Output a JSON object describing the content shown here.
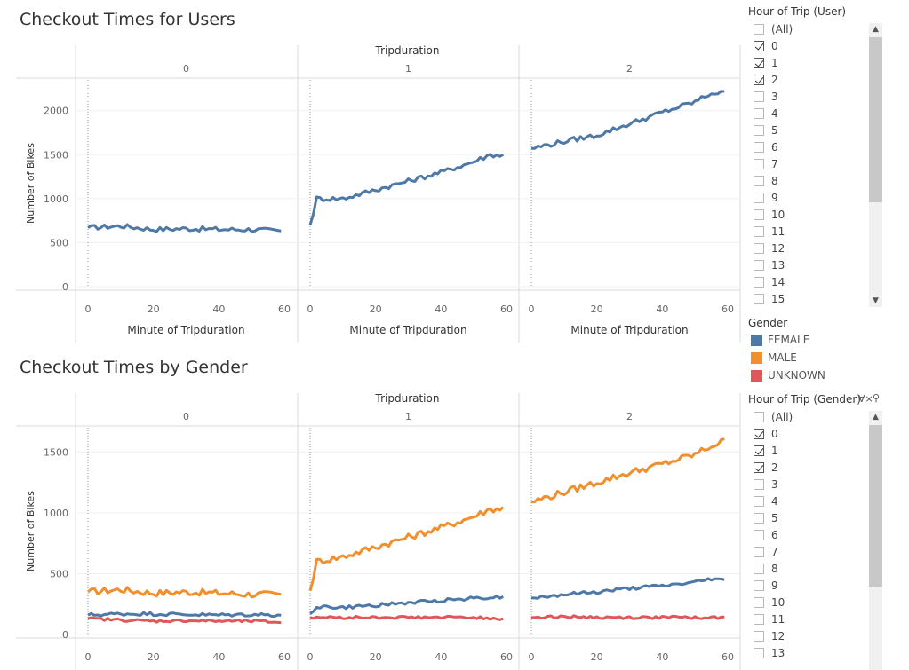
{
  "chart_data": [
    {
      "type": "line",
      "title": "Checkout Times for Users",
      "column_header": "Tripduration",
      "panels": [
        "0",
        "1",
        "2"
      ],
      "xlabel": "Minute of Tripduration",
      "ylabel": "Number of Bikes",
      "xlim": [
        0,
        60
      ],
      "ylim": [
        0,
        2350
      ],
      "x_ticks": [
        0,
        20,
        40,
        60
      ],
      "y_ticks": [
        0,
        500,
        1000,
        1500,
        2000
      ],
      "series": [
        {
          "color": "#4e79a7",
          "panel_values": [
            [
              [
                0,
                670
              ],
              [
                10,
                690
              ],
              [
                20,
                650
              ],
              [
                30,
                660
              ],
              [
                40,
                650
              ],
              [
                50,
                650
              ],
              [
                60,
                630
              ]
            ],
            [
              [
                0,
                700
              ],
              [
                2,
                1000
              ],
              [
                10,
                1000
              ],
              [
                20,
                1100
              ],
              [
                30,
                1200
              ],
              [
                40,
                1300
              ],
              [
                50,
                1420
              ],
              [
                55,
                1500
              ],
              [
                60,
                1490
              ]
            ],
            [
              [
                0,
                1570
              ],
              [
                10,
                1650
              ],
              [
                20,
                1720
              ],
              [
                30,
                1850
              ],
              [
                40,
                1980
              ],
              [
                50,
                2100
              ],
              [
                55,
                2200
              ],
              [
                60,
                2200
              ]
            ]
          ]
        }
      ]
    },
    {
      "type": "line",
      "title": "Checkout Times by Gender",
      "column_header": "Tripduration",
      "panels": [
        "0",
        "1",
        "2"
      ],
      "xlabel": "",
      "ylabel": "Number of Bikes",
      "xlim": [
        0,
        60
      ],
      "ylim": [
        0,
        1700
      ],
      "x_ticks": [
        0,
        20,
        40,
        60
      ],
      "y_ticks": [
        0,
        500,
        1000,
        1500
      ],
      "series": [
        {
          "name": "MALE",
          "color": "#f28e2b",
          "panel_values": [
            [
              [
                0,
                350
              ],
              [
                10,
                370
              ],
              [
                20,
                340
              ],
              [
                30,
                350
              ],
              [
                40,
                340
              ],
              [
                50,
                330
              ],
              [
                60,
                330
              ]
            ],
            [
              [
                0,
                360
              ],
              [
                2,
                600
              ],
              [
                10,
                640
              ],
              [
                20,
                720
              ],
              [
                30,
                800
              ],
              [
                40,
                880
              ],
              [
                50,
                970
              ],
              [
                55,
                1030
              ],
              [
                60,
                1040
              ]
            ],
            [
              [
                0,
                1090
              ],
              [
                10,
                1170
              ],
              [
                20,
                1250
              ],
              [
                30,
                1330
              ],
              [
                40,
                1400
              ],
              [
                50,
                1480
              ],
              [
                55,
                1550
              ],
              [
                60,
                1600
              ]
            ]
          ]
        },
        {
          "name": "FEMALE",
          "color": "#4e79a7",
          "panel_values": [
            [
              [
                0,
                160
              ],
              [
                10,
                170
              ],
              [
                20,
                170
              ],
              [
                30,
                165
              ],
              [
                40,
                160
              ],
              [
                50,
                165
              ],
              [
                60,
                160
              ]
            ],
            [
              [
                0,
                170
              ],
              [
                2,
                230
              ],
              [
                10,
                220
              ],
              [
                20,
                240
              ],
              [
                30,
                260
              ],
              [
                40,
                280
              ],
              [
                50,
                300
              ],
              [
                60,
                310
              ]
            ],
            [
              [
                0,
                300
              ],
              [
                10,
                330
              ],
              [
                20,
                350
              ],
              [
                30,
                380
              ],
              [
                40,
                400
              ],
              [
                50,
                430
              ],
              [
                55,
                460
              ],
              [
                60,
                440
              ]
            ]
          ]
        },
        {
          "name": "UNKNOWN",
          "color": "#e15759",
          "panel_values": [
            [
              [
                0,
                130
              ],
              [
                10,
                120
              ],
              [
                20,
                110
              ],
              [
                30,
                115
              ],
              [
                40,
                110
              ],
              [
                50,
                110
              ],
              [
                60,
                100
              ]
            ],
            [
              [
                0,
                140
              ],
              [
                10,
                140
              ],
              [
                20,
                140
              ],
              [
                30,
                140
              ],
              [
                40,
                140
              ],
              [
                50,
                140
              ],
              [
                60,
                130
              ]
            ],
            [
              [
                0,
                140
              ],
              [
                10,
                150
              ],
              [
                20,
                140
              ],
              [
                30,
                140
              ],
              [
                40,
                140
              ],
              [
                50,
                140
              ],
              [
                60,
                140
              ]
            ]
          ]
        }
      ]
    }
  ],
  "filter_user": {
    "title": "Hour of Trip (User)",
    "items": [
      {
        "label": "(All)",
        "checked": false
      },
      {
        "label": "0",
        "checked": true
      },
      {
        "label": "1",
        "checked": true
      },
      {
        "label": "2",
        "checked": true
      },
      {
        "label": "3",
        "checked": false
      },
      {
        "label": "4",
        "checked": false
      },
      {
        "label": "5",
        "checked": false
      },
      {
        "label": "6",
        "checked": false
      },
      {
        "label": "7",
        "checked": false
      },
      {
        "label": "8",
        "checked": false
      },
      {
        "label": "9",
        "checked": false
      },
      {
        "label": "10",
        "checked": false
      },
      {
        "label": "11",
        "checked": false
      },
      {
        "label": "12",
        "checked": false
      },
      {
        "label": "13",
        "checked": false
      },
      {
        "label": "14",
        "checked": false
      },
      {
        "label": "15",
        "checked": false
      }
    ]
  },
  "legend_gender": {
    "title": "Gender",
    "items": [
      {
        "label": "FEMALE",
        "color": "#4e79a7"
      },
      {
        "label": "MALE",
        "color": "#f28e2b"
      },
      {
        "label": "UNKNOWN",
        "color": "#e15759"
      }
    ]
  },
  "filter_gender": {
    "title": "Hour of Trip (Gender)",
    "items": [
      {
        "label": "(All)",
        "checked": false
      },
      {
        "label": "0",
        "checked": true
      },
      {
        "label": "1",
        "checked": true
      },
      {
        "label": "2",
        "checked": true
      },
      {
        "label": "3",
        "checked": false
      },
      {
        "label": "4",
        "checked": false
      },
      {
        "label": "5",
        "checked": false
      },
      {
        "label": "6",
        "checked": false
      },
      {
        "label": "7",
        "checked": false
      },
      {
        "label": "8",
        "checked": false
      },
      {
        "label": "9",
        "checked": false
      },
      {
        "label": "10",
        "checked": false
      },
      {
        "label": "11",
        "checked": false
      },
      {
        "label": "12",
        "checked": false
      },
      {
        "label": "13",
        "checked": false
      }
    ]
  }
}
